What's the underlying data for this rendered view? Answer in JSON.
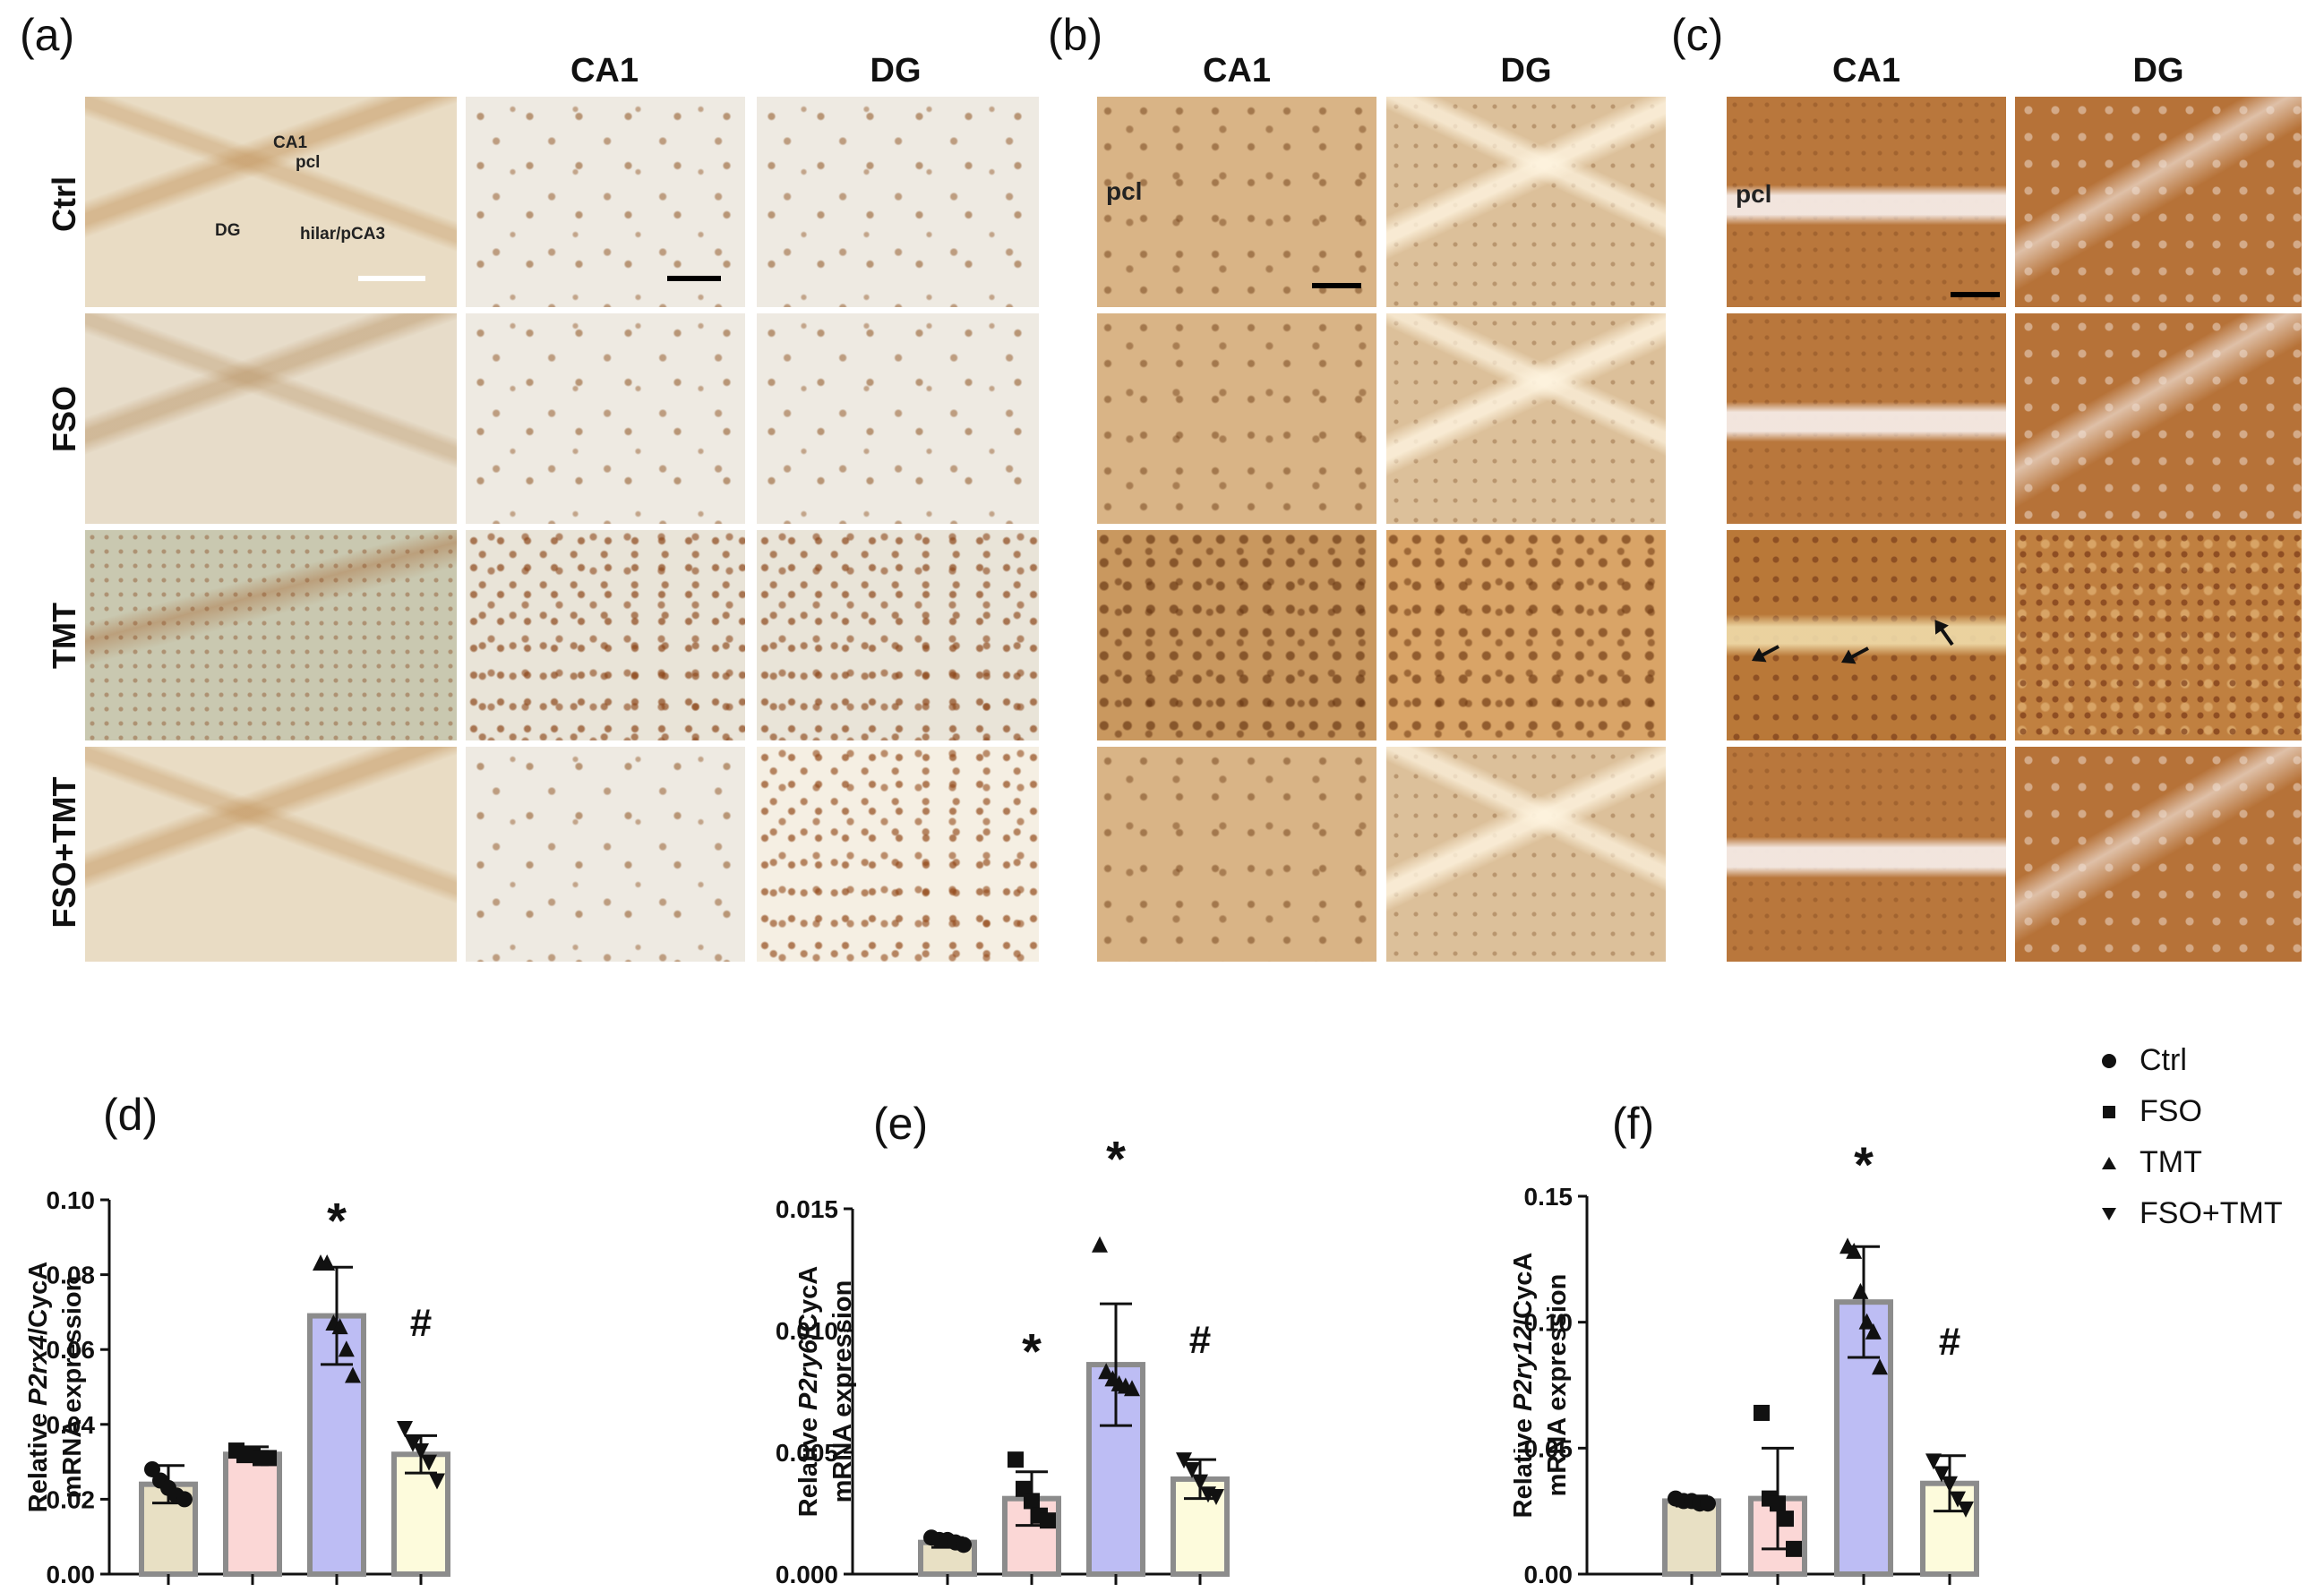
{
  "panels": {
    "a": "(a)",
    "b": "(b)",
    "c": "(c)",
    "d": "(d)",
    "e": "(e)",
    "f": "(f)"
  },
  "columns": {
    "ca1": "CA1",
    "dg": "DG"
  },
  "rows": [
    "Ctrl",
    "FSO",
    "TMT",
    "FSO+TMT"
  ],
  "overview_labels": {
    "ca1": "CA1",
    "pcl": "pcl",
    "dg": "DG",
    "hilar": "hilar/pCA3"
  },
  "pcl_label": "pcl",
  "legend": {
    "items": [
      {
        "label": "Ctrl",
        "marker": "circle"
      },
      {
        "label": "FSO",
        "marker": "square"
      },
      {
        "label": "TMT",
        "marker": "triangle-up"
      },
      {
        "label": "FSO+TMT",
        "marker": "triangle-down"
      }
    ]
  },
  "colors": {
    "Ctrl": "#e8e0c4",
    "FSO": "#fbd7d6",
    "TMT": "#bdbdf4",
    "FSO+TMT": "#fdfbdc",
    "bar_edge": "#8c8c8c",
    "axis": "#111111"
  },
  "chart_data": [
    {
      "panel": "d",
      "type": "bar",
      "categories": [
        "Ctrl",
        "FSO",
        "TMT",
        "FSO+TMT"
      ],
      "ylabel_prefix": "Relative ",
      "ylabel_gene": "P2rx4",
      "ylabel_suffix": "/CycA",
      "ylabel_line2": "mRNA expression",
      "ylim": [
        0,
        0.1
      ],
      "yticks": [
        0,
        0.02,
        0.04,
        0.06,
        0.08,
        0.1
      ],
      "ytick_labels": [
        "0.00",
        "0.02",
        "0.04",
        "0.06",
        "0.08",
        "0.10"
      ],
      "values": [
        0.024,
        0.032,
        0.069,
        0.032
      ],
      "sd": [
        0.005,
        0.002,
        0.013,
        0.005
      ],
      "points": [
        [
          0.028,
          0.025,
          0.023,
          0.021,
          0.02
        ],
        [
          0.033,
          0.032,
          0.032,
          0.031,
          0.031
        ],
        [
          0.083,
          0.083,
          0.067,
          0.066,
          0.06,
          0.053
        ],
        [
          0.039,
          0.035,
          0.033,
          0.03,
          0.025
        ]
      ],
      "annotations": [
        {
          "category": "TMT",
          "text": "*",
          "y": 0.096
        },
        {
          "category": "FSO+TMT",
          "text": "#",
          "y": 0.067
        }
      ]
    },
    {
      "panel": "e",
      "type": "bar",
      "categories": [
        "Ctrl",
        "FSO",
        "TMT",
        "FSO+TMT"
      ],
      "ylabel_prefix": "Relative ",
      "ylabel_gene": "P2ry6",
      "ylabel_suffix": "/CycA",
      "ylabel_line2": "mRNA expression",
      "ylim": [
        0,
        0.015
      ],
      "yticks": [
        0,
        0.005,
        0.01,
        0.015
      ],
      "ytick_labels": [
        "0.000",
        "0.005",
        "0.010",
        "0.015"
      ],
      "values": [
        0.0013,
        0.0031,
        0.0086,
        0.0039
      ],
      "sd": [
        0.0002,
        0.0011,
        0.0025,
        0.0008
      ],
      "points": [
        [
          0.0015,
          0.0014,
          0.0014,
          0.0013,
          0.0012
        ],
        [
          0.0047,
          0.0035,
          0.003,
          0.0024,
          0.0022
        ],
        [
          0.0135,
          0.0083,
          0.008,
          0.0078,
          0.0077,
          0.0076
        ],
        [
          0.0047,
          0.0043,
          0.0038,
          0.0033,
          0.0032
        ]
      ],
      "annotations": [
        {
          "category": "FSO",
          "text": "*",
          "y": 0.0094
        },
        {
          "category": "TMT",
          "text": "*",
          "y": 0.0173
        },
        {
          "category": "FSO+TMT",
          "text": "#",
          "y": 0.0096
        }
      ]
    },
    {
      "panel": "f",
      "type": "bar",
      "categories": [
        "Ctrl",
        "FSO",
        "TMT",
        "FSO+TMT"
      ],
      "ylabel_prefix": "Relative ",
      "ylabel_gene": "P2ry12",
      "ylabel_suffix": "/CycA",
      "ylabel_line2": "mRNA expression",
      "ylim": [
        0,
        0.15
      ],
      "yticks": [
        0,
        0.05,
        0.1,
        0.15
      ],
      "ytick_labels": [
        "0.00",
        "0.05",
        "0.10",
        "0.15"
      ],
      "values": [
        0.029,
        0.03,
        0.108,
        0.036
      ],
      "sd": [
        0.002,
        0.02,
        0.022,
        0.011
      ],
      "points": [
        [
          0.03,
          0.029,
          0.029,
          0.028,
          0.028
        ],
        [
          0.064,
          0.03,
          0.028,
          0.022,
          0.01
        ],
        [
          0.13,
          0.128,
          0.112,
          0.1,
          0.096,
          0.082
        ],
        [
          0.045,
          0.04,
          0.036,
          0.03,
          0.026
        ]
      ],
      "annotations": [
        {
          "category": "TMT",
          "text": "*",
          "y": 0.165
        },
        {
          "category": "FSO+TMT",
          "text": "#",
          "y": 0.092
        }
      ]
    }
  ]
}
